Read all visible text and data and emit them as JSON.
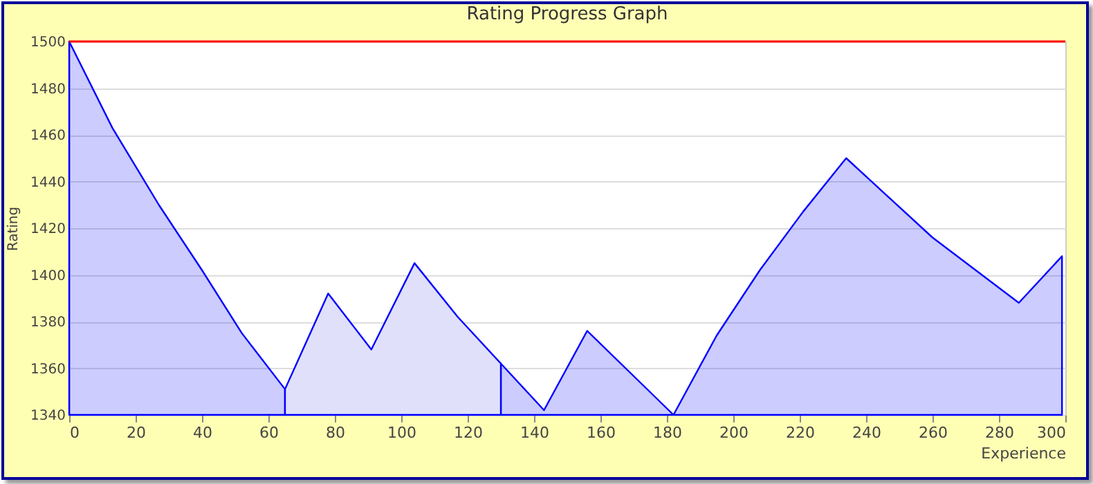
{
  "chart_data": {
    "type": "area",
    "title": "Rating Progress Graph",
    "xlabel": "Experience",
    "ylabel": "Rating",
    "x": [
      0,
      13,
      27,
      40,
      52,
      65,
      78,
      91,
      104,
      117,
      130,
      143,
      156,
      169,
      182,
      195,
      208,
      221,
      234,
      247,
      260,
      273,
      286,
      299
    ],
    "series": [
      {
        "color": "#0000ff",
        "values": [
          1500,
          1463,
          1430,
          1402,
          1375,
          1351,
          null,
          null,
          null,
          null,
          1362,
          1342,
          1376,
          1358,
          1340,
          1374,
          1402,
          1427,
          1450,
          1433,
          1416,
          1402,
          1388,
          1408
        ]
      },
      {
        "color": "#e0e0fa",
        "x": [
          65,
          78,
          91,
          104,
          117,
          130
        ],
        "values": [
          1351,
          1392,
          1368,
          1405,
          1382,
          1362
        ]
      }
    ],
    "xlim": [
      0,
      300
    ],
    "xticks": [
      0,
      20,
      40,
      60,
      80,
      100,
      120,
      140,
      160,
      180,
      200,
      220,
      240,
      260,
      280,
      300
    ],
    "ylim": [
      1340,
      1500
    ],
    "yticks": [
      1340,
      1360,
      1380,
      1400,
      1420,
      1440,
      1460,
      1480,
      1500
    ],
    "grid": "y",
    "ref_lines": [
      {
        "axis": "y",
        "value": 1500,
        "color": "#ff0000"
      }
    ]
  }
}
